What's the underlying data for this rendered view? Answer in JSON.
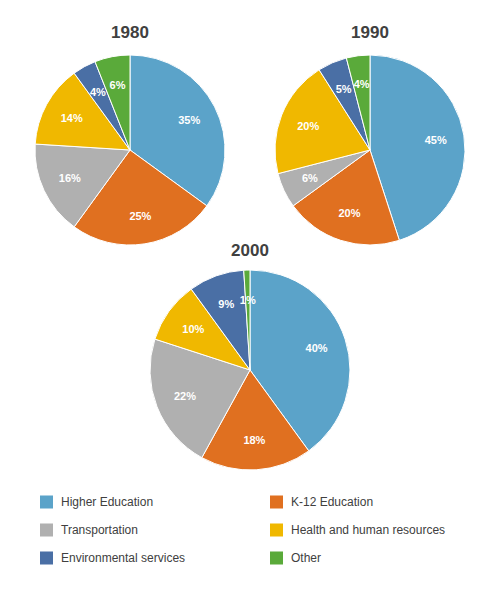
{
  "chart_data": {
    "type": "pie",
    "categories": [
      "Higher Education",
      "K-12 Education",
      "Transportation",
      "Health and human resources",
      "Environmental services",
      "Other"
    ],
    "colors": [
      "#5BA3C9",
      "#E07020",
      "#B0B0B0",
      "#F0B800",
      "#4A6FA5",
      "#5AAA3A"
    ],
    "series": [
      {
        "name": "1980",
        "values": [
          35,
          25,
          16,
          14,
          4,
          6
        ],
        "value_labels": [
          "35%",
          "25%",
          "16%",
          "14%",
          "4%",
          "6%"
        ]
      },
      {
        "name": "1990",
        "values": [
          45,
          20,
          6,
          20,
          5,
          4
        ],
        "value_labels": [
          "45%",
          "20%",
          "6%",
          "20%",
          "5%",
          "4%"
        ]
      },
      {
        "name": "2000",
        "values": [
          40,
          18,
          22,
          10,
          9,
          1
        ],
        "value_labels": [
          "40%",
          "18%",
          "22%",
          "10%",
          "9%",
          "1%"
        ]
      }
    ],
    "data_labels": true,
    "legend": "bottom"
  }
}
